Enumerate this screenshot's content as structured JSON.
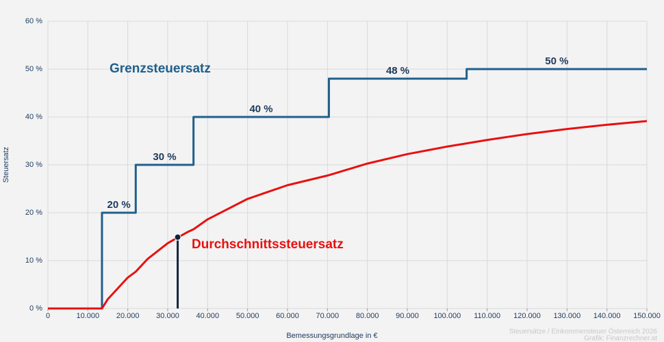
{
  "chart_data": {
    "type": "line",
    "xlabel": "Bemessungsgrundlage in €",
    "ylabel": "Steuersatz",
    "source": [
      "Steuersätze / Einkommensteuer Österreich 2026",
      "Grafik: Finanzrechner.at"
    ],
    "xlim": [
      0,
      150000
    ],
    "ylim": [
      0,
      60
    ],
    "xticks": [
      0,
      {
        "value": 10000,
        "label": "10.000"
      },
      {
        "value": 20000,
        "label": "20.000"
      },
      {
        "value": 30000,
        "label": "30.000"
      },
      {
        "value": 40000,
        "label": "40.000"
      },
      {
        "value": 50000,
        "label": "50.000"
      },
      {
        "value": 60000,
        "label": "60.000"
      },
      {
        "value": 70000,
        "label": "70.000"
      },
      {
        "value": 80000,
        "label": "80.000"
      },
      {
        "value": 90000,
        "label": "90.000"
      },
      {
        "value": 100000,
        "label": "100.000"
      },
      {
        "value": 110000,
        "label": "110.000"
      },
      {
        "value": 120000,
        "label": "120.000"
      },
      {
        "value": 130000,
        "label": "130.000"
      },
      {
        "value": 140000,
        "label": "140.000"
      },
      {
        "value": 150000,
        "label": "150.000"
      }
    ],
    "yticks": [
      {
        "value": 0,
        "label": "0 %"
      },
      {
        "value": 10,
        "label": "10 %"
      },
      {
        "value": 20,
        "label": "20 %"
      },
      {
        "value": 30,
        "label": "30 %"
      },
      {
        "value": 40,
        "label": "40 %"
      },
      {
        "value": 50,
        "label": "50 %"
      },
      {
        "value": 60,
        "label": "60 %"
      }
    ],
    "grid": true,
    "series": [
      {
        "name": "Grenzsteuersatz",
        "color": "#1f5f8b",
        "x": [
          0,
          13539,
          13539,
          21992,
          21992,
          36458,
          36458,
          70365,
          70365,
          104859,
          104859,
          150000
        ],
        "values": [
          0,
          0,
          20,
          20,
          30,
          30,
          40,
          40,
          48,
          48,
          50,
          50
        ],
        "value_labels": [
          null,
          null,
          "20 %",
          null,
          "30 %",
          null,
          "40 %",
          null,
          "48 %",
          null,
          "50 %",
          null
        ]
      },
      {
        "name": "Durchschnittssteuersatz",
        "color": "#e8100f",
        "x": [
          0,
          10000,
          13539,
          15000,
          20000,
          21992,
          25000,
          30000,
          35000,
          36458,
          40000,
          50000,
          60000,
          70365,
          80000,
          90000,
          100000,
          104859,
          110000,
          120000,
          130000,
          140000,
          150000
        ],
        "values": [
          0,
          0,
          0,
          1.95,
          6.46,
          7.69,
          10.37,
          13.64,
          15.98,
          16.54,
          18.62,
          22.89,
          25.75,
          27.84,
          30.27,
          32.24,
          33.82,
          34.48,
          35.2,
          36.43,
          37.48,
          38.37,
          39.15
        ]
      }
    ],
    "marker": {
      "x": 32500,
      "y": 14.9
    }
  }
}
